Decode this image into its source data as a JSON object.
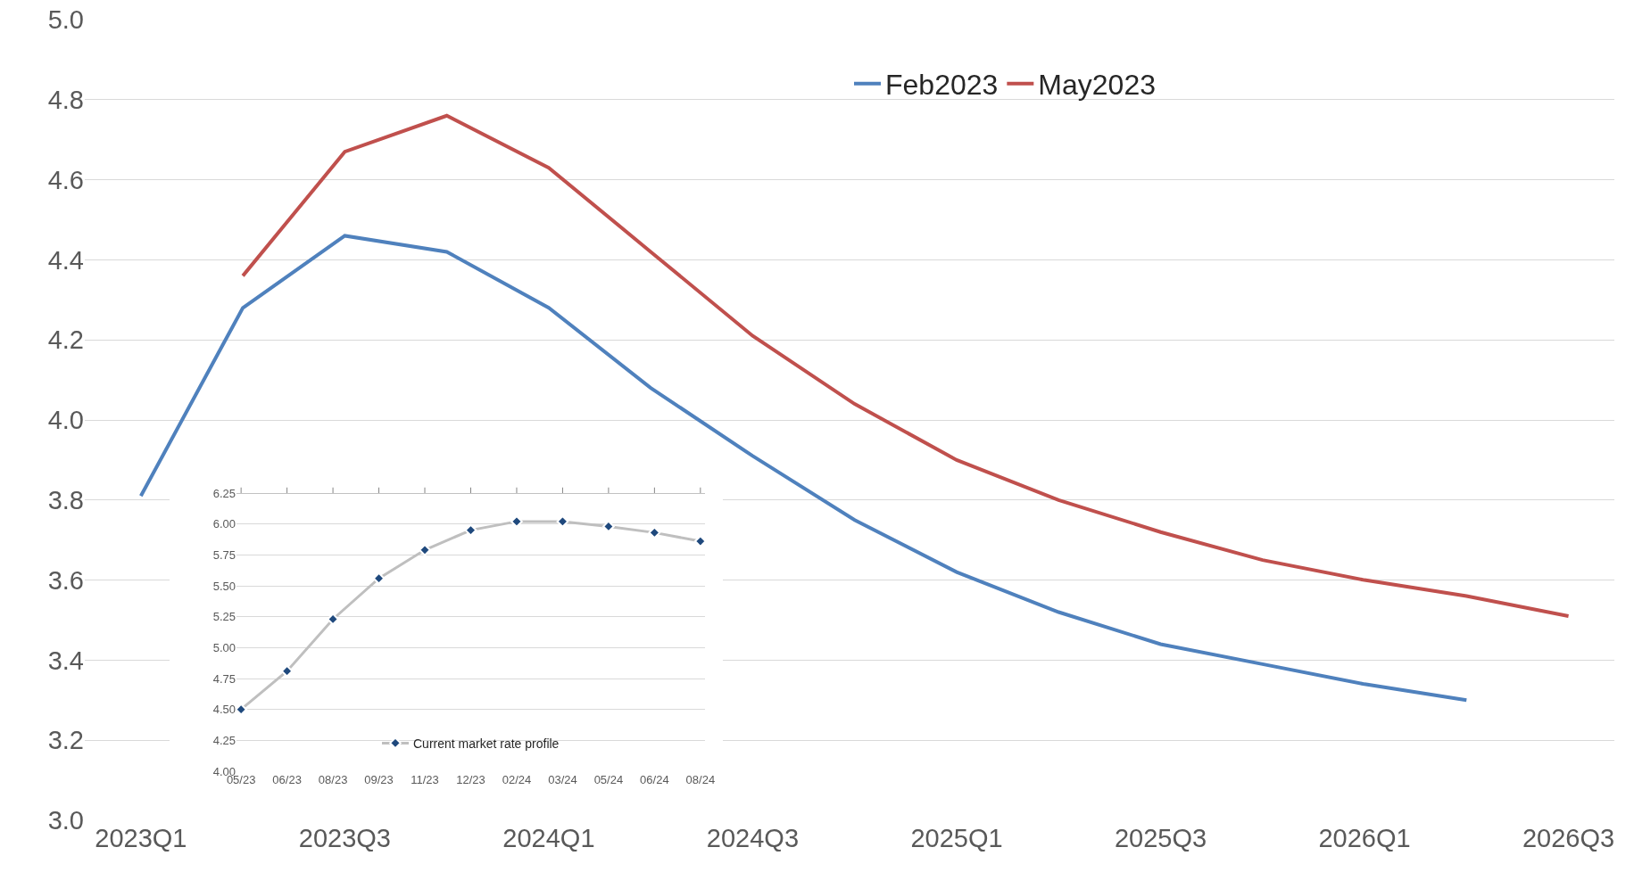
{
  "chart_data": [
    {
      "type": "line",
      "categories": [
        "2023Q1",
        null,
        "2023Q3",
        null,
        "2024Q1",
        null,
        "2024Q3",
        null,
        "2025Q1",
        null,
        "2025Q3",
        null,
        "2026Q1",
        null,
        "2026Q3"
      ],
      "series": [
        {
          "name": "Feb2023",
          "color": "#4f81bd",
          "values": [
            3.81,
            4.28,
            4.46,
            4.42,
            4.28,
            4.08,
            3.91,
            3.75,
            3.62,
            3.52,
            3.44,
            3.39,
            3.34,
            3.3,
            null
          ]
        },
        {
          "name": "May2023",
          "color": "#c0504d",
          "values": [
            null,
            4.36,
            4.67,
            4.76,
            4.63,
            4.42,
            4.21,
            4.04,
            3.9,
            3.8,
            3.72,
            3.65,
            3.6,
            3.56,
            3.51
          ]
        }
      ],
      "ylim": [
        3.0,
        5.0
      ],
      "yticks": [
        {
          "value": 3.0,
          "label": "3.0"
        },
        {
          "value": 3.2,
          "label": "3.2"
        },
        {
          "value": 3.4,
          "label": "3.4"
        },
        {
          "value": 3.6,
          "label": "3.6"
        },
        {
          "value": 3.8,
          "label": "3.8"
        },
        {
          "value": 4.0,
          "label": "4.0"
        },
        {
          "value": 4.2,
          "label": "4.2"
        },
        {
          "value": 4.4,
          "label": "4.4"
        },
        {
          "value": 4.6,
          "label": "4.6"
        },
        {
          "value": 4.8,
          "label": "4.8"
        },
        {
          "value": 5.0,
          "label": "5.0"
        }
      ],
      "grid": "y",
      "legend": "top right",
      "marker": "none",
      "line_style": "solid"
    },
    {
      "type": "line",
      "categories": [
        "05/23",
        "06/23",
        "08/23",
        "09/23",
        "11/23",
        "12/23",
        "02/24",
        "03/24",
        "05/24",
        "06/24",
        "08/24"
      ],
      "series": [
        {
          "name": "Current market rate profile",
          "color": "#bfbfbf",
          "colors": [
            "#1f497d",
            "#1f497d",
            "#1f497d",
            "#1f497d",
            "#1f497d",
            "#1f497d",
            "#1f497d",
            "#1f497d",
            "#1f497d",
            "#1f497d",
            "#1f497d"
          ],
          "values": [
            4.5,
            4.81,
            5.23,
            5.56,
            5.79,
            5.95,
            6.02,
            6.02,
            5.98,
            5.93,
            5.86
          ]
        }
      ],
      "ylim": [
        4.0,
        6.25
      ],
      "yticks": [
        {
          "value": 4.0,
          "label": "4.00"
        },
        {
          "value": 4.25,
          "label": "4.25"
        },
        {
          "value": 4.5,
          "label": "4.50"
        },
        {
          "value": 4.75,
          "label": "4.75"
        },
        {
          "value": 5.0,
          "label": "5.00"
        },
        {
          "value": 5.25,
          "label": "5.25"
        },
        {
          "value": 5.5,
          "label": "5.50"
        },
        {
          "value": 5.75,
          "label": "5.75"
        },
        {
          "value": 6.0,
          "label": "6.00"
        },
        {
          "value": 6.25,
          "label": "6.25"
        }
      ],
      "grid": "y",
      "legend": "bottom",
      "marker": "diamond",
      "line_style": "solid"
    }
  ]
}
